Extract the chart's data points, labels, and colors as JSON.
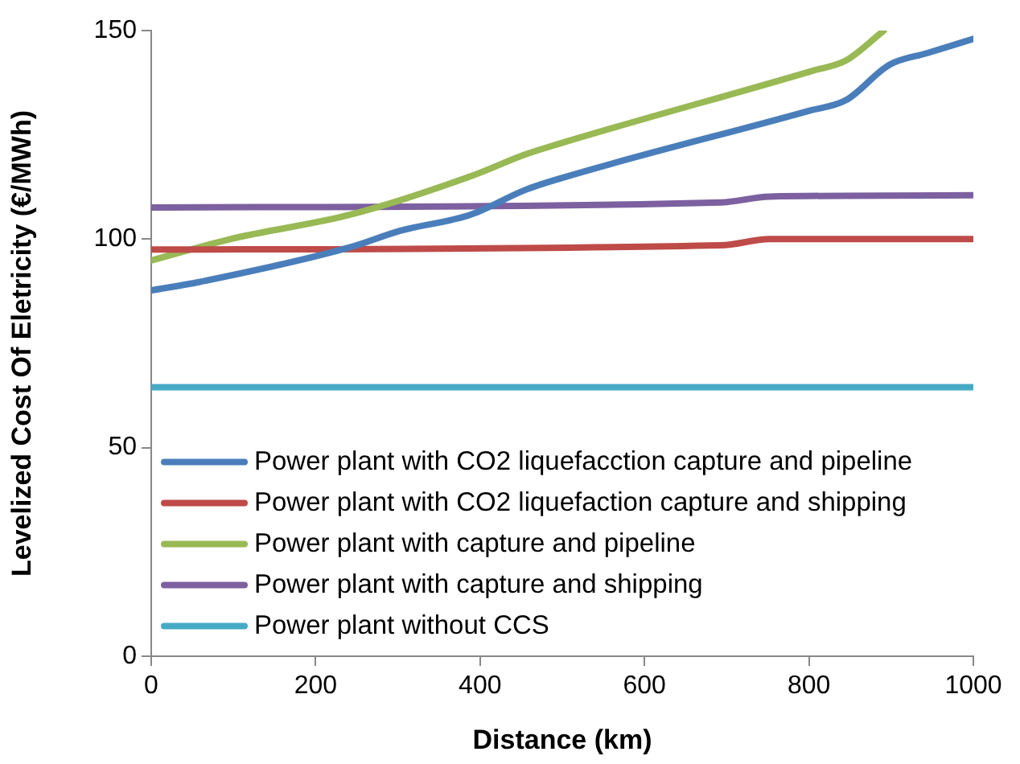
{
  "chart_data": {
    "type": "line",
    "xlabel": "Distance (km)",
    "ylabel": "Levelized Cost Of Eletricity (€/MWh)",
    "xlim": [
      0,
      1000
    ],
    "xticks": [
      0,
      200,
      400,
      600,
      800,
      1000
    ],
    "ylim": [
      0,
      150
    ],
    "yticks": [
      0,
      50,
      100,
      150
    ],
    "grid": false,
    "legend": "bottom left",
    "marker": "none",
    "line_style": "solid",
    "series": [
      {
        "name": "Power plant with CO2 liquefacction capture and pipeline",
        "color": "#4a7ebb",
        "x": [
          0,
          58,
          243,
          303,
          389,
          455,
          495,
          799,
          845,
          898,
          944,
          1000
        ],
        "values": [
          87.7,
          89.7,
          98.1,
          102,
          105.9,
          111.8,
          114.4,
          130.7,
          133.3,
          141.8,
          144.6,
          148
        ]
      },
      {
        "name": "Power plant with CO2 liquefaction capture and shipping",
        "color": "#be4b48",
        "x": [
          0,
          693,
          752,
          1000
        ],
        "values": [
          97.5,
          98.5,
          100,
          100
        ]
      },
      {
        "name": "Power plant with capture and pipeline",
        "color": "#98b954",
        "x": [
          0,
          98,
          243,
          389,
          455,
          495,
          805,
          845,
          891
        ],
        "values": [
          94.9,
          100.1,
          105.9,
          115.1,
          120.3,
          122.8,
          140.4,
          142.8,
          150
        ]
      },
      {
        "name": "Power plant with capture and shipping",
        "color": "#7d60a0",
        "x": [
          0,
          693,
          752,
          1000
        ],
        "values": [
          107.6,
          108.8,
          110.2,
          110.5
        ]
      },
      {
        "name": "Power plant without CCS",
        "color": "#46aac5",
        "x": [
          0,
          1000
        ],
        "values": [
          64.5,
          64.5
        ]
      }
    ]
  }
}
